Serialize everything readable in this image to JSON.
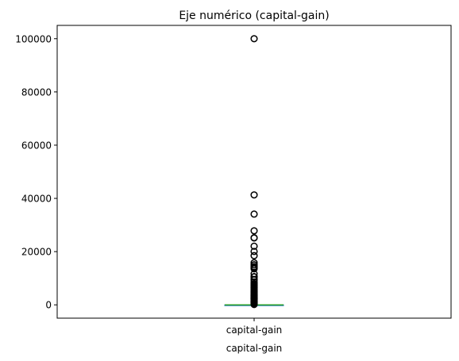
{
  "chart_data": {
    "type": "box",
    "title": "Eje numérico (capital-gain)",
    "xlabel": "capital-gain",
    "ylabel": "",
    "categories": [
      "capital-gain"
    ],
    "ylim": [
      -5000,
      105000
    ],
    "yticks": [
      0,
      20000,
      40000,
      60000,
      80000,
      100000
    ],
    "ytick_labels": [
      "0",
      "20000",
      "40000",
      "60000",
      "80000",
      "100000"
    ],
    "grid": false,
    "box": {
      "q1": 0,
      "median": 0,
      "q3": 0,
      "whisker_low": 0,
      "whisker_high": 0,
      "outliers": [
        114,
        401,
        594,
        914,
        991,
        1055,
        1086,
        1151,
        1173,
        1409,
        1424,
        1455,
        1471,
        1506,
        1639,
        1797,
        1831,
        1848,
        2009,
        2036,
        2062,
        2105,
        2174,
        2176,
        2202,
        2228,
        2290,
        2329,
        2346,
        2354,
        2387,
        2407,
        2414,
        2463,
        2538,
        2580,
        2597,
        2635,
        2653,
        2829,
        2885,
        2907,
        2936,
        2961,
        2964,
        2977,
        2993,
        3103,
        3137,
        3273,
        3325,
        3411,
        3418,
        3432,
        3456,
        3464,
        3471,
        3674,
        3781,
        3818,
        3887,
        3908,
        3942,
        4064,
        4101,
        4386,
        4416,
        4508,
        4650,
        4687,
        4787,
        4865,
        4931,
        4934,
        5013,
        5060,
        5178,
        5455,
        5556,
        5721,
        6097,
        6360,
        6418,
        6497,
        6514,
        6723,
        6767,
        6849,
        7298,
        7430,
        7443,
        7688,
        7896,
        7978,
        8614,
        9386,
        9562,
        10520,
        10566,
        10605,
        11678,
        13550,
        14084,
        14344,
        15020,
        15024,
        15831,
        18481,
        20051,
        22040,
        25124,
        25236,
        27828,
        34095,
        41310,
        99999
      ],
      "color": "#2ca02c",
      "whisker_color": "#1f77b4"
    }
  }
}
